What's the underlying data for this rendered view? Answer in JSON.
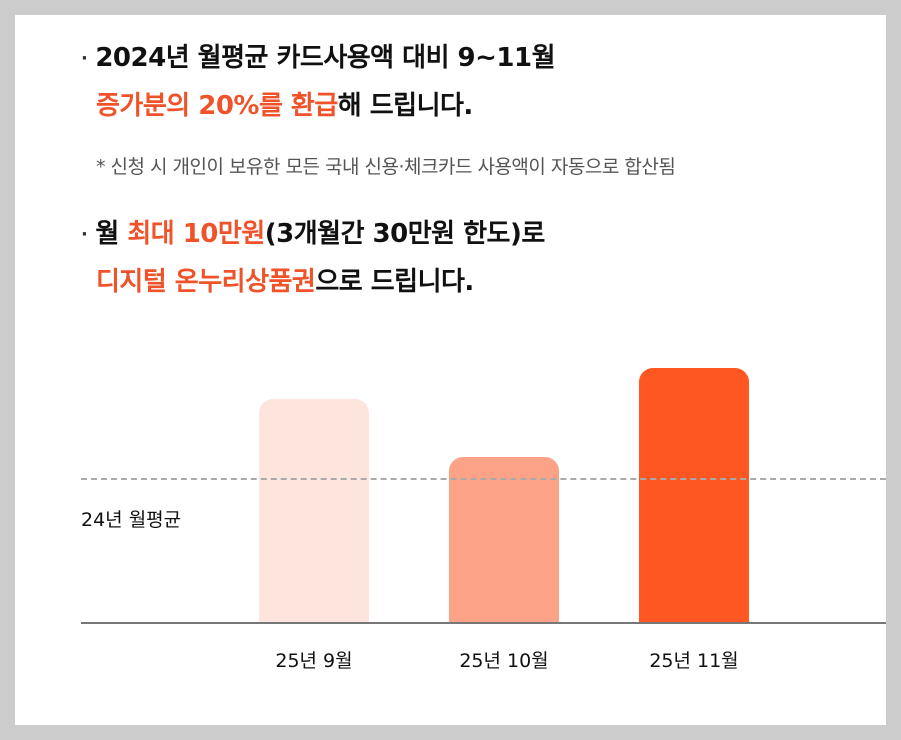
{
  "heading1": {
    "bullet": "·",
    "line1": "2024년 월평균 카드사용액 대비 9~11월",
    "line2_highlight": "증가분의 20%를 환급",
    "line2_rest": "해 드립니다."
  },
  "note": "* 신청 시 개인이 보유한 모든 국내 신용·체크카드 사용액이 자동으로 합산됨",
  "heading2": {
    "bullet": "·",
    "line1_pre": "월 ",
    "line1_highlight": "최대 10만원",
    "line1_rest": "(3개월간 30만원 한도)로",
    "line2_highlight": "디지털 온누리상품권",
    "line2_rest": "으로 드립니다."
  },
  "colors": {
    "accent": "#f0532a",
    "bar_sep": "#fde4dc",
    "bar_oct": "#fca286",
    "bar_nov": "#ff5722"
  },
  "chart_data": {
    "type": "bar",
    "categories": [
      "25년 9월",
      "25년 10월",
      "25년 11월"
    ],
    "values": [
      1.3,
      1.08,
      1.42
    ],
    "baseline_label": "24년 월평균",
    "baseline_value": 1.0,
    "ylim": [
      0.45,
      1.45
    ],
    "bar_colors": [
      "#fde4dc",
      "#fca286",
      "#ff5722"
    ],
    "grid": false,
    "legend": "none"
  }
}
